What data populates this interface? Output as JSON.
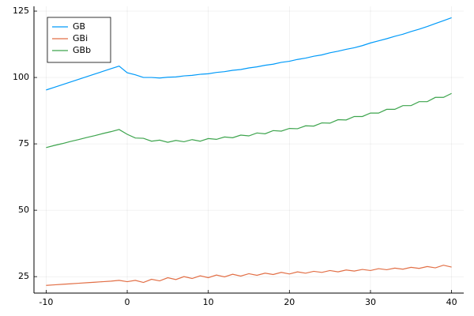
{
  "chart_data": {
    "type": "line",
    "x": [
      -10,
      -9,
      -8,
      -7,
      -6,
      -5,
      -4,
      -3,
      -2,
      -1,
      0,
      1,
      2,
      3,
      4,
      5,
      6,
      7,
      8,
      9,
      10,
      11,
      12,
      13,
      14,
      15,
      16,
      17,
      18,
      19,
      20,
      21,
      22,
      23,
      24,
      25,
      26,
      27,
      28,
      29,
      30,
      31,
      32,
      33,
      34,
      35,
      36,
      37,
      38,
      39,
      40
    ],
    "series": [
      {
        "name": "GB",
        "color": "#009af9",
        "values": [
          95.3,
          96.3,
          97.3,
          98.3,
          99.3,
          100.3,
          101.3,
          102.3,
          103.3,
          104.3,
          101.8,
          101.0,
          100.0,
          100.0,
          99.8,
          100.1,
          100.2,
          100.6,
          100.8,
          101.2,
          101.4,
          101.9,
          102.2,
          102.7,
          103.0,
          103.6,
          104.0,
          104.6,
          105.0,
          105.7,
          106.1,
          106.8,
          107.3,
          108.0,
          108.5,
          109.3,
          109.9,
          110.6,
          111.2,
          112.0,
          113.0,
          113.8,
          114.6,
          115.5,
          116.3,
          117.3,
          118.2,
          119.2,
          120.3,
          121.4,
          122.5
        ]
      },
      {
        "name": "GBi",
        "color": "#e26f46",
        "values": [
          21.7,
          21.9,
          22.1,
          22.3,
          22.5,
          22.7,
          22.9,
          23.1,
          23.3,
          23.6,
          23.1,
          23.6,
          22.8,
          24.0,
          23.4,
          24.6,
          23.9,
          25.0,
          24.3,
          25.3,
          24.6,
          25.6,
          24.9,
          25.9,
          25.2,
          26.1,
          25.5,
          26.3,
          25.8,
          26.6,
          26.0,
          26.8,
          26.3,
          27.0,
          26.6,
          27.3,
          26.8,
          27.5,
          27.1,
          27.7,
          27.3,
          28.0,
          27.6,
          28.2,
          27.8,
          28.5,
          28.1,
          28.8,
          28.3,
          29.3,
          28.6
        ]
      },
      {
        "name": "GBb",
        "color": "#3da44d",
        "values": [
          73.6,
          74.4,
          75.1,
          75.9,
          76.6,
          77.4,
          78.1,
          78.9,
          79.6,
          80.4,
          78.6,
          77.2,
          77.1,
          76.0,
          76.4,
          75.6,
          76.3,
          75.8,
          76.6,
          76.0,
          77.0,
          76.7,
          77.6,
          77.3,
          78.3,
          78.0,
          79.1,
          78.8,
          80.0,
          79.8,
          80.8,
          80.7,
          81.8,
          81.7,
          82.9,
          82.8,
          84.1,
          84.0,
          85.3,
          85.3,
          86.6,
          86.6,
          88.0,
          88.0,
          89.4,
          89.4,
          90.9,
          90.9,
          92.5,
          92.5,
          94.0
        ]
      }
    ],
    "xlim": [
      -11.5,
      41.5
    ],
    "xticks": [
      -10,
      0,
      10,
      20,
      30,
      40
    ],
    "ylim": [
      18.8,
      126.8
    ],
    "yticks": [
      25,
      50,
      75,
      100,
      125
    ],
    "grid": true,
    "legend": "top-left"
  }
}
